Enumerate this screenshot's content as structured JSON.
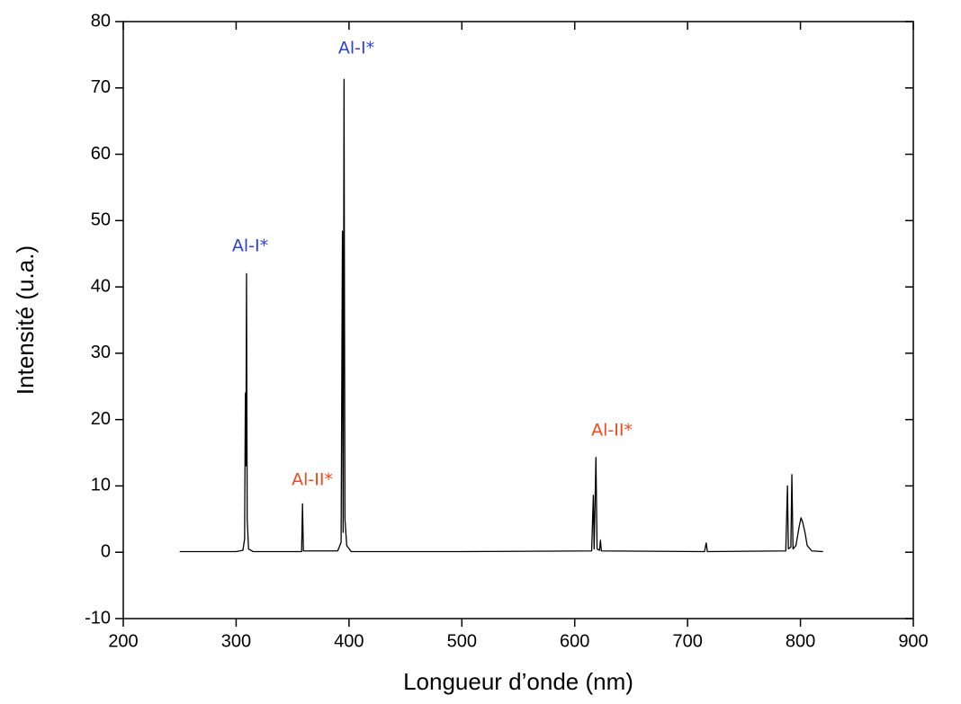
{
  "chart_data": {
    "type": "line",
    "xlabel": "Longueur d’onde (nm)",
    "ylabel": "Intensité (u.a.)",
    "x": [
      250,
      300,
      306,
      307.5,
      308.2,
      308.6,
      309.2,
      309.8,
      311,
      315,
      358,
      358.8,
      359.6,
      390,
      393,
      394.2,
      394.8,
      395.6,
      396.4,
      398,
      402,
      500,
      615,
      616.5,
      617.2,
      618.8,
      619.8,
      622,
      622.8,
      623.6,
      715,
      716.5,
      717.5,
      787,
      788.5,
      789.3,
      791.5,
      792.4,
      793.4,
      796,
      799,
      800.5,
      802,
      804,
      806,
      810,
      820
    ],
    "values": [
      0.1,
      0.1,
      0.3,
      2,
      24,
      13,
      42,
      5,
      0.5,
      0.1,
      0.1,
      7.3,
      0.2,
      0.2,
      1.5,
      48.4,
      3,
      71.3,
      5,
      1,
      0.1,
      0.1,
      0.2,
      8.6,
      0.5,
      14.3,
      0.5,
      0.3,
      1.8,
      0.2,
      0.1,
      1.4,
      0.1,
      0.2,
      10,
      0.5,
      0.8,
      11.7,
      0.5,
      1,
      4,
      5.2,
      4.5,
      3,
      1,
      0.2,
      0.1
    ],
    "color": "#000000",
    "xlim": [
      200,
      900
    ],
    "xticks": [
      200,
      300,
      400,
      500,
      600,
      700,
      800,
      900
    ],
    "ylim": [
      -10,
      80
    ],
    "yticks": [
      -10,
      0,
      10,
      20,
      30,
      40,
      50,
      60,
      70,
      80
    ],
    "annotations": [
      {
        "text": "Al-I*",
        "color": "#2a3fe0"
      },
      {
        "text": "Al-I*",
        "color": "#2a3fe0"
      },
      {
        "text": "Al-II*",
        "color": "#f04a1e"
      },
      {
        "text": "Al-II*",
        "color": "#f04a1e"
      }
    ]
  }
}
